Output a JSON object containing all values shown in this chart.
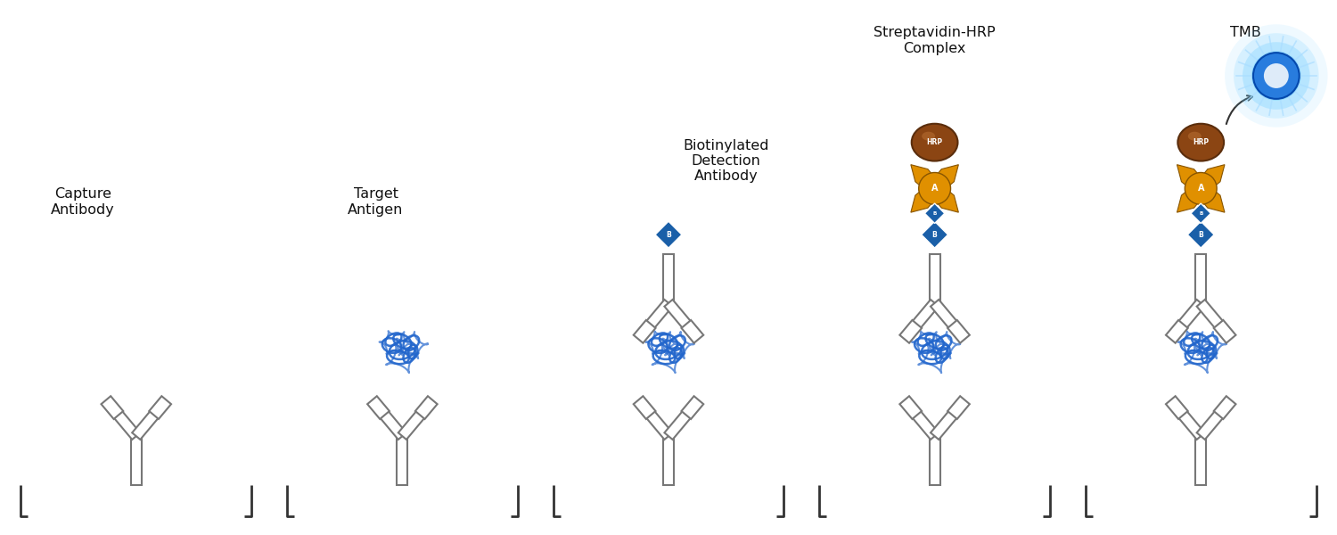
{
  "background_color": "#ffffff",
  "panels": [
    0.1,
    0.3,
    0.5,
    0.7,
    0.9
  ],
  "ab_color": "#999999",
  "ab_edge": "#777777",
  "antigen_color": "#2266cc",
  "biotin_color": "#1a5fa8",
  "strep_color": "#e09000",
  "hrp_color": "#8B4513",
  "hrp_edge": "#5a2d0c",
  "tmb_color": "#3399ff",
  "bracket_color": "#333333",
  "text_color": "#111111",
  "font_size": 11.5
}
